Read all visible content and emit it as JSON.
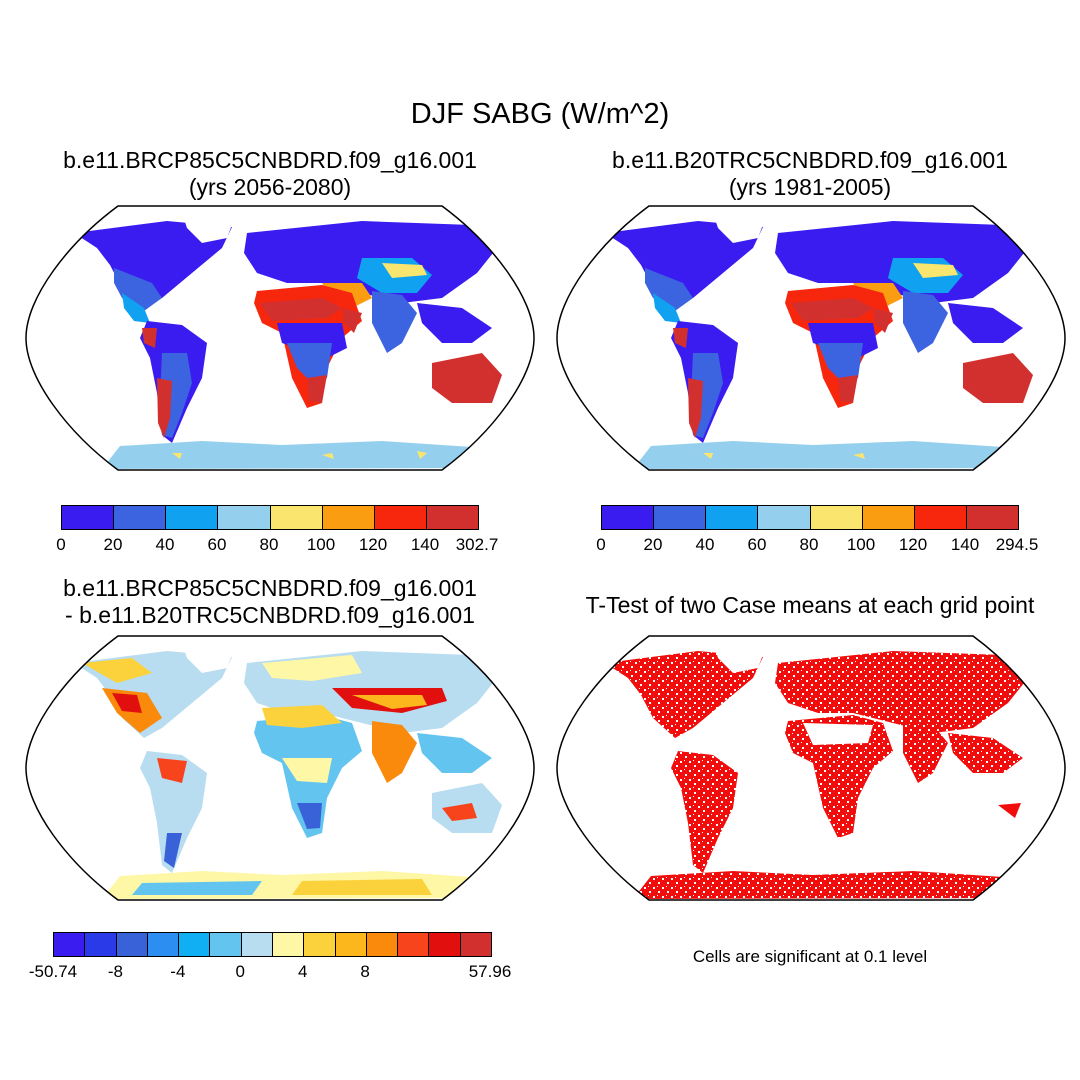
{
  "figure": {
    "title": "DJF SABG (W/m^2)",
    "panels": [
      {
        "id": "p1",
        "title_line1": "b.e11.BRCP85C5CNBDRD.f09_g16.001",
        "title_line2": "(yrs 2056-2080)"
      },
      {
        "id": "p2",
        "title_line1": "b.e11.B20TRC5CNBDRD.f09_g16.001",
        "title_line2": "(yrs 1981-2005)"
      },
      {
        "id": "p3",
        "title_line1": "b.e11.BRCP85C5CNBDRD.f09_g16.001",
        "title_line2": "- b.e11.B20TRC5CNBDRD.f09_g16.001"
      },
      {
        "id": "p4",
        "title_line1": "T-Test of two Case means at each grid point"
      }
    ],
    "significance_note": "Cells are significant at 0.1 level"
  },
  "colorbars": {
    "abs1": {
      "colors": [
        "#3a1cf0",
        "#3c64e0",
        "#10a2f0",
        "#95cfee",
        "#fae56e",
        "#fa9d10",
        "#f7270e",
        "#d2302f"
      ],
      "tick_labels": [
        "0",
        "20",
        "40",
        "60",
        "80",
        "100",
        "120",
        "140",
        "302.7"
      ]
    },
    "abs2": {
      "colors": [
        "#3a1cf0",
        "#3c64e0",
        "#10a2f0",
        "#95cfee",
        "#fae56e",
        "#fa9d10",
        "#f7270e",
        "#d2302f"
      ],
      "tick_labels": [
        "0",
        "20",
        "40",
        "60",
        "80",
        "100",
        "120",
        "140",
        "294.5"
      ]
    },
    "diff": {
      "colors": [
        "#3a1cf0",
        "#2a3ae8",
        "#3a62d8",
        "#2c8ef0",
        "#10aef2",
        "#64c4f0",
        "#b8dcf0",
        "#fef7a6",
        "#fcd23c",
        "#fcb71c",
        "#fa8a0c",
        "#f7441c",
        "#e1100e",
        "#d2302f"
      ],
      "tick_labels": [
        "-50.74",
        "-8",
        "-4",
        "0",
        "4",
        "8",
        "57.96"
      ],
      "tick_positions": [
        0,
        2,
        4,
        6,
        8,
        10,
        14
      ]
    }
  }
}
